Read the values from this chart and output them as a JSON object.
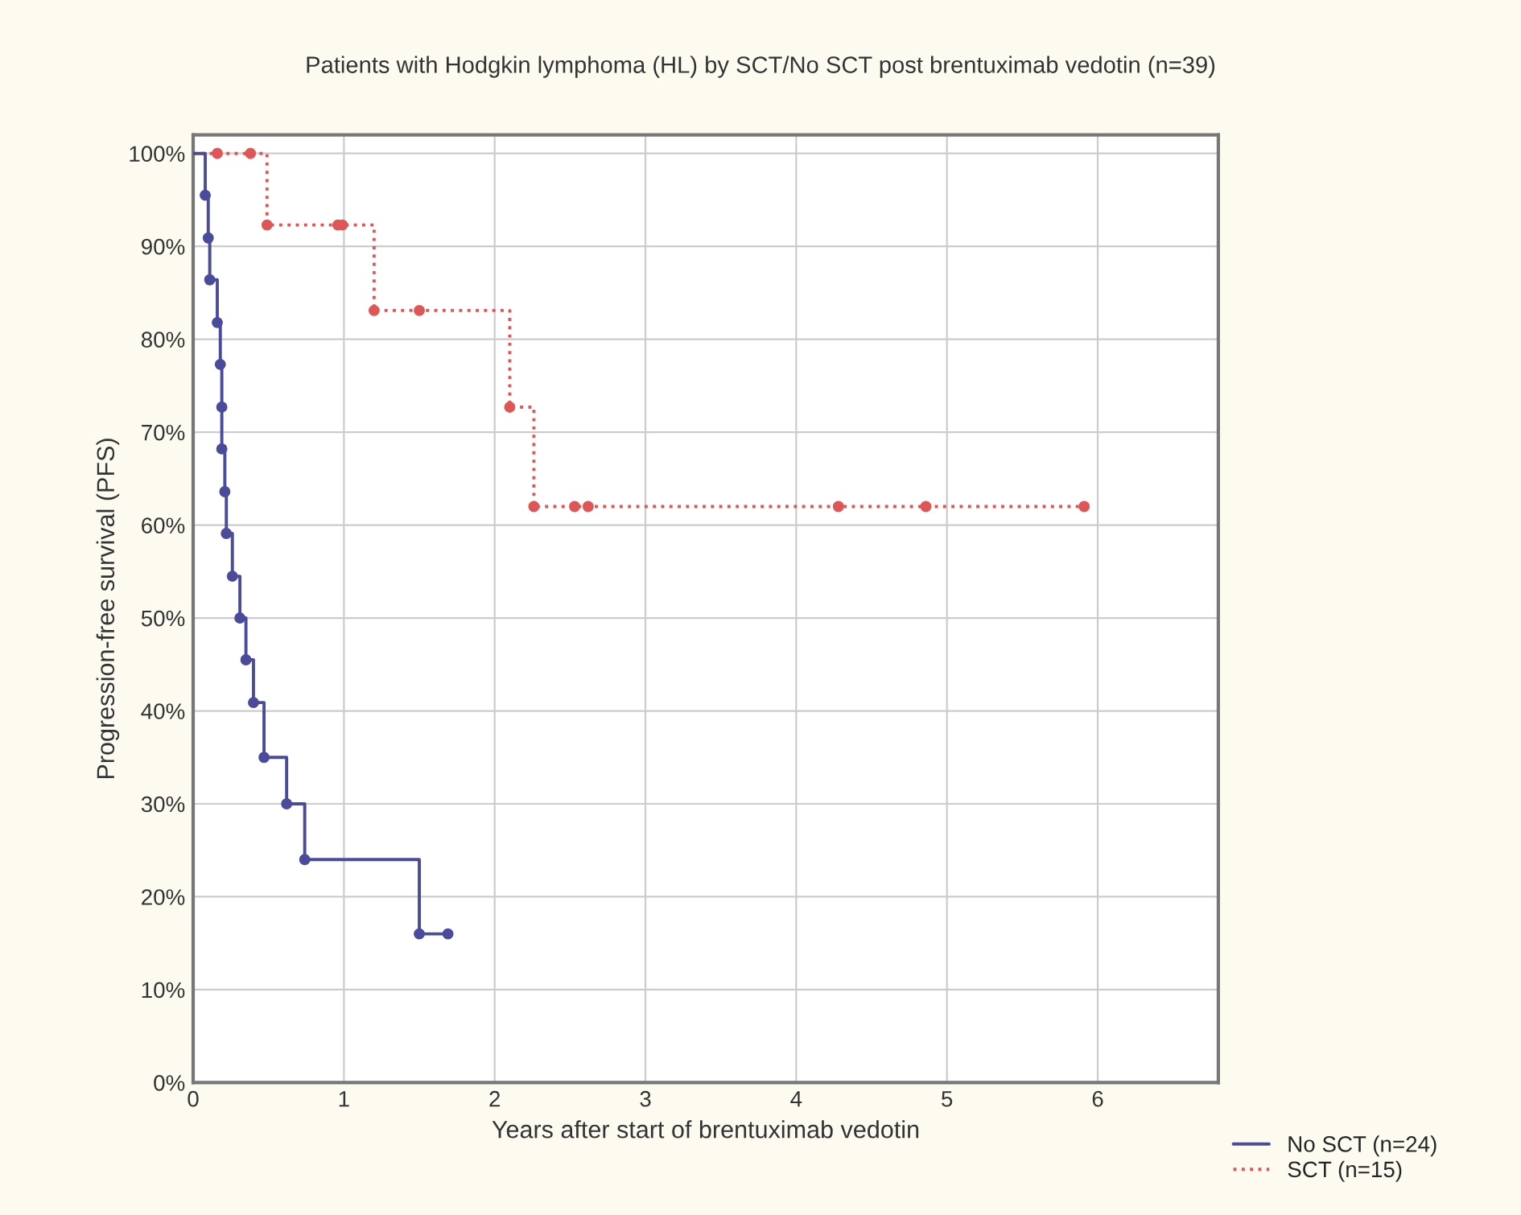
{
  "chart_data": {
    "type": "step",
    "title": "Patients with Hodgkin lymphoma (HL) by SCT/No SCT post brentuximab vedotin (n=39)",
    "xlabel": "Years after start of brentuximab vedotin",
    "ylabel": "Progression-free survival (PFS)",
    "series": [
      {
        "name": "No SCT (n=24)",
        "color": "#4b4b9b",
        "line_style": "solid",
        "x": [
          0,
          0.08,
          0.1,
          0.11,
          0.16,
          0.18,
          0.19,
          0.19,
          0.21,
          0.22,
          0.26,
          0.31,
          0.35,
          0.4,
          0.47,
          0.62,
          0.74,
          1.5,
          1.69
        ],
        "values": [
          100,
          95.5,
          90.9,
          86.4,
          81.8,
          77.3,
          72.7,
          68.2,
          63.6,
          59.1,
          54.5,
          50,
          45.5,
          40.9,
          35,
          30,
          24,
          16,
          16
        ]
      },
      {
        "name": "SCT (n=15)",
        "color": "#e05555",
        "line_style": "dotted",
        "x": [
          0,
          0.16,
          0.38,
          0.49,
          0.96,
          0.99,
          1.2,
          1.5,
          2.1,
          2.26,
          2.53,
          2.62,
          4.28,
          4.86,
          5.91
        ],
        "values": [
          100,
          100,
          100,
          92.3,
          92.3,
          92.3,
          83.1,
          83.1,
          72.7,
          62,
          62,
          62,
          62,
          62,
          62
        ]
      }
    ],
    "marker": "circle",
    "grid": true,
    "legend": "bottom right",
    "xlim": [
      0,
      6.8
    ],
    "xticks": [
      0,
      1,
      2,
      3,
      4,
      5,
      6
    ],
    "ylim": [
      0,
      102
    ],
    "yticks": [
      {
        "value": 0,
        "label": "0%"
      },
      {
        "value": 10,
        "label": "10%"
      },
      {
        "value": 20,
        "label": "20%"
      },
      {
        "value": 30,
        "label": "30%"
      },
      {
        "value": 40,
        "label": "40%"
      },
      {
        "value": 50,
        "label": "50%"
      },
      {
        "value": 60,
        "label": "60%"
      },
      {
        "value": 70,
        "label": "70%"
      },
      {
        "value": 80,
        "label": "80%"
      },
      {
        "value": 90,
        "label": "90%"
      },
      {
        "value": 100,
        "label": "100%"
      }
    ]
  }
}
